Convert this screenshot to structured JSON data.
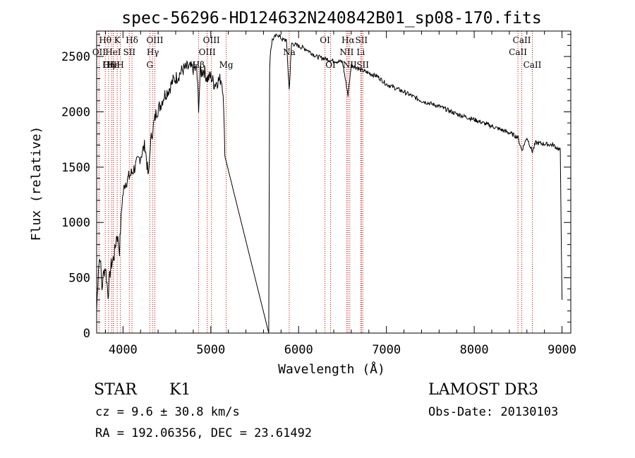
{
  "chart_data": {
    "type": "line",
    "title": "spec-56296-HD124632N240842B01_sp08-170.fits",
    "xlabel": "Wavelength (Å)",
    "ylabel": "Flux (relative)",
    "xlim": [
      3700,
      9100
    ],
    "ylim": [
      0,
      2730
    ],
    "xticks": [
      4000,
      5000,
      6000,
      7000,
      8000,
      9000
    ],
    "yticks": [
      0,
      500,
      1000,
      1500,
      2000,
      2500
    ],
    "grid": false,
    "legend": "none",
    "line_color": "#000000",
    "marker_color": "#cc0000",
    "series": [
      {
        "x": [
          3700,
          3720,
          3740,
          3760,
          3780,
          3800,
          3830,
          3860,
          3900,
          3930,
          3960,
          3990,
          4020,
          4060,
          4100,
          4150,
          4200,
          4250,
          4290,
          4310,
          4340,
          4380,
          4420,
          4470,
          4520,
          4570,
          4620,
          4680,
          4740,
          4800,
          4840,
          4861,
          4880,
          4920,
          4960,
          5000,
          5040,
          5080,
          5120,
          5140,
          5160,
          5660,
          5670,
          5680,
          5700,
          5760,
          5820,
          5860,
          5893,
          5920,
          5980,
          6050,
          6100,
          6200,
          6300,
          6400,
          6500,
          6563,
          6600,
          6700,
          6800,
          6900,
          7000,
          7200,
          7400,
          7600,
          7800,
          8000,
          8200,
          8400,
          8498,
          8542,
          8600,
          8662,
          8700,
          8900,
          8980,
          9000
        ],
        "y": [
          200,
          600,
          700,
          400,
          550,
          600,
          350,
          600,
          700,
          900,
          750,
          1200,
          1350,
          1400,
          1450,
          1520,
          1600,
          1700,
          1400,
          1700,
          1850,
          2000,
          2050,
          2150,
          2200,
          2280,
          2320,
          2380,
          2400,
          2390,
          2380,
          2050,
          2350,
          2380,
          2300,
          2320,
          2250,
          2280,
          2300,
          2200,
          1600,
          0,
          2400,
          2550,
          2650,
          2700,
          2650,
          2650,
          2200,
          2620,
          2600,
          2580,
          2560,
          2500,
          2480,
          2460,
          2450,
          2150,
          2430,
          2380,
          2350,
          2320,
          2250,
          2180,
          2100,
          2050,
          1980,
          1930,
          1870,
          1810,
          1770,
          1650,
          1770,
          1640,
          1720,
          1700,
          1650,
          300
        ]
      }
    ],
    "line_markers": [
      {
        "label": "Hθ",
        "wavelength": 3798,
        "row": 1
      },
      {
        "label": "OII",
        "wavelength": 3727,
        "row": 2
      },
      {
        "label": "OIII",
        "wavelength": 3869,
        "row": 3
      },
      {
        "label": "Hε",
        "wavelength": 3889,
        "row": 3
      },
      {
        "label": "HeI",
        "wavelength": 3888,
        "row": 2
      },
      {
        "label": "K",
        "wavelength": 3934,
        "row": 1
      },
      {
        "label": "SII",
        "wavelength": 4072,
        "row": 2
      },
      {
        "label": "Hη",
        "wavelength": 3835,
        "row": 3
      },
      {
        "label": "H",
        "wavelength": 3969,
        "row": 3
      },
      {
        "label": "Hδ",
        "wavelength": 4102,
        "row": 1
      },
      {
        "label": "OIII",
        "wavelength": 4363,
        "row": 1
      },
      {
        "label": "Hγ",
        "wavelength": 4340,
        "row": 2
      },
      {
        "label": "G",
        "wavelength": 4305,
        "row": 3
      },
      {
        "label": "Hβ",
        "wavelength": 4861,
        "row": 3
      },
      {
        "label": "OIII",
        "wavelength": 5007,
        "row": 1
      },
      {
        "label": "OIII",
        "wavelength": 4959,
        "row": 2
      },
      {
        "label": "Mg",
        "wavelength": 5175,
        "row": 3
      },
      {
        "label": "Na",
        "wavelength": 5893,
        "row": 2
      },
      {
        "label": "OI",
        "wavelength": 6300,
        "row": 1
      },
      {
        "label": "OI",
        "wavelength": 6364,
        "row": 3
      },
      {
        "label": "Hα",
        "wavelength": 6563,
        "row": 1
      },
      {
        "label": "NII",
        "wavelength": 6548,
        "row": 2
      },
      {
        "label": "NII",
        "wavelength": 6583,
        "row": 3
      },
      {
        "label": "SII",
        "wavelength": 6716,
        "row": 1
      },
      {
        "label": "SII",
        "wavelength": 6731,
        "row": 3
      },
      {
        "label": "Li",
        "wavelength": 6708,
        "row": 2
      },
      {
        "label": "CaII",
        "wavelength": 8542,
        "row": 1
      },
      {
        "label": "CaII",
        "wavelength": 8498,
        "row": 2
      },
      {
        "label": "CaII",
        "wavelength": 8662,
        "row": 3
      }
    ]
  },
  "info": {
    "object_class": "STAR",
    "subclass": "K1",
    "survey": "LAMOST DR3",
    "cz_line": "cz = 9.6 ± 30.8 km/s",
    "obs_date": "Obs-Date: 20130103",
    "coords": "RA = 192.06356, DEC =  23.61492"
  }
}
